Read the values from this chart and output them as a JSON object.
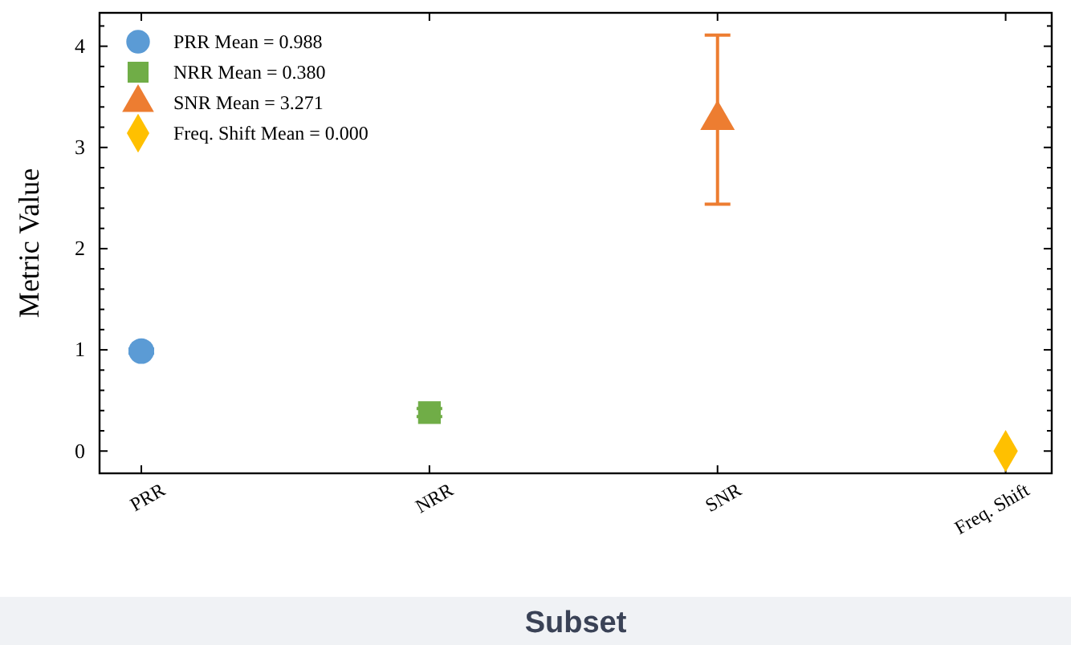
{
  "chart_data": {
    "type": "scatter",
    "xlabel": "Subset",
    "ylabel": "Metric Value",
    "categories": [
      "PRR",
      "NRR",
      "SNR",
      "Freq. Shift"
    ],
    "series": [
      {
        "name": "PRR Mean = 0.988",
        "color": "#5b9bd5",
        "marker": "circle",
        "x": [
          "PRR"
        ],
        "values": [
          0.988
        ],
        "errors": [
          0.02
        ]
      },
      {
        "name": "NRR Mean = 0.380",
        "color": "#70ad47",
        "marker": "square",
        "x": [
          "NRR"
        ],
        "values": [
          0.38
        ],
        "errors": [
          0.04
        ]
      },
      {
        "name": "SNR Mean = 3.271",
        "color": "#ed7d31",
        "marker": "triangle",
        "x": [
          "SNR"
        ],
        "values": [
          3.271
        ],
        "errors": [
          [
            2.44,
            4.11
          ]
        ]
      },
      {
        "name": "Freq. Shift Mean = 0.000",
        "color": "#ffc000",
        "marker": "diamond",
        "x": [
          "Freq. Shift"
        ],
        "values": [
          0.0
        ],
        "errors": [
          null
        ]
      }
    ],
    "ylim": [
      -0.22,
      4.33
    ],
    "yticks": [
      0,
      {
        "value": 0.2,
        "label": null
      },
      {
        "value": 0.4,
        "label": null
      },
      {
        "value": 0.6,
        "label": null
      },
      {
        "value": 0.8,
        "label": null
      },
      1,
      {
        "value": 1.2,
        "label": null
      },
      {
        "value": 1.4,
        "label": null
      },
      {
        "value": 1.6,
        "label": null
      },
      {
        "value": 1.8,
        "label": null
      },
      2,
      {
        "value": 2.2,
        "label": null
      },
      {
        "value": 2.4,
        "label": null
      },
      {
        "value": 2.6,
        "label": null
      },
      {
        "value": 2.8,
        "label": null
      },
      3,
      {
        "value": 3.2,
        "label": null
      },
      {
        "value": 3.4,
        "label": null
      },
      {
        "value": 3.6,
        "label": null
      },
      {
        "value": 3.8,
        "label": null
      },
      4,
      {
        "value": 4.2,
        "label": null
      }
    ],
    "grid": false,
    "legend": "top left"
  }
}
